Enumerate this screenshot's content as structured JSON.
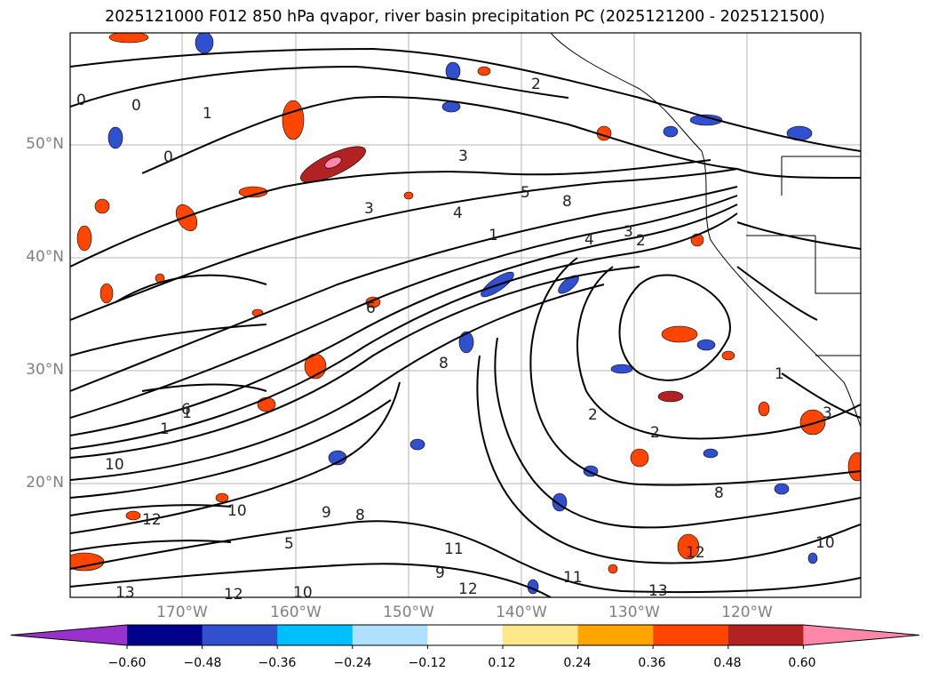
{
  "title": "2025121000 F012 850 hPa qvapor, river basin precipitation PC (2025121200 - 2025121500)",
  "lat_labels": [
    "50°N",
    "40°N",
    "30°N",
    "20°N"
  ],
  "lon_labels": [
    "170°W",
    "160°W",
    "150°W",
    "140°W",
    "130°W",
    "120°W"
  ],
  "colorbar": {
    "ticks": [
      "−0.60",
      "−0.48",
      "−0.36",
      "−0.24",
      "−0.12",
      "0.12",
      "0.24",
      "0.36",
      "0.48",
      "0.60"
    ],
    "colors": [
      "#9932cc",
      "#00008b",
      "#3050d0",
      "#00bfff",
      "#b0e0ff",
      "#ffffff",
      "#ffe88a",
      "#ffa500",
      "#ff4500",
      "#b22222",
      "#ff88aa"
    ]
  },
  "contour_labels": [
    {
      "text": "0"
    },
    {
      "text": "0"
    },
    {
      "text": "0"
    },
    {
      "text": "1"
    },
    {
      "text": "2"
    },
    {
      "text": "3"
    },
    {
      "text": "3"
    },
    {
      "text": "4"
    },
    {
      "text": "5"
    },
    {
      "text": "8"
    },
    {
      "text": "3"
    },
    {
      "text": "2"
    },
    {
      "text": "4"
    },
    {
      "text": "1"
    },
    {
      "text": "6"
    },
    {
      "text": "1"
    },
    {
      "text": "6"
    },
    {
      "text": "10"
    },
    {
      "text": "2"
    },
    {
      "text": "2"
    },
    {
      "text": "8"
    },
    {
      "text": "10"
    },
    {
      "text": "8"
    },
    {
      "text": "12"
    },
    {
      "text": "13"
    },
    {
      "text": "12"
    },
    {
      "text": "13"
    },
    {
      "text": "11"
    },
    {
      "text": "12"
    },
    {
      "text": "9"
    },
    {
      "text": "11"
    },
    {
      "text": "10"
    },
    {
      "text": "1"
    },
    {
      "text": "1"
    },
    {
      "text": "3"
    },
    {
      "text": "8"
    },
    {
      "text": "9"
    },
    {
      "text": "5"
    },
    {
      "text": "12"
    },
    {
      "text": "10"
    }
  ]
}
